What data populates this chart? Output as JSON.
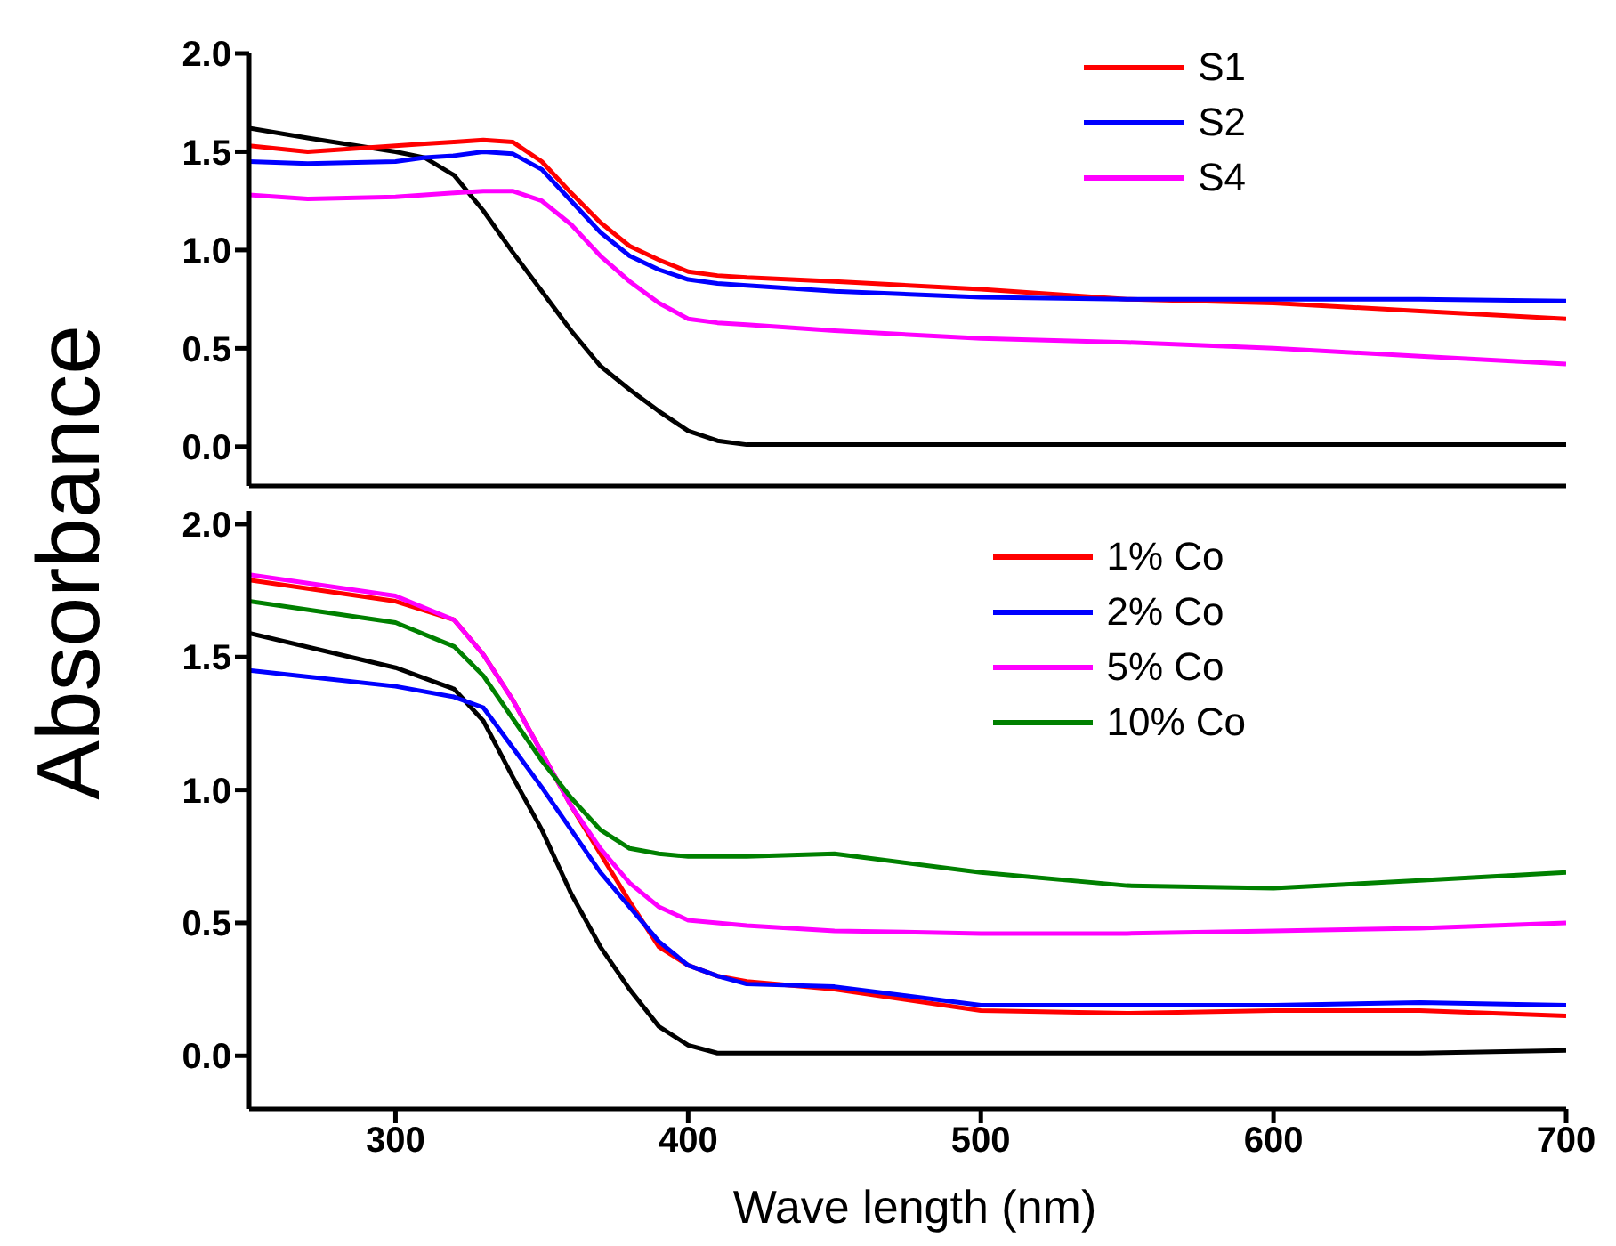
{
  "chart_data": [
    {
      "type": "line",
      "x": [
        250,
        270,
        300,
        310,
        320,
        330,
        340,
        350,
        360,
        370,
        380,
        390,
        400,
        410,
        420,
        450,
        500,
        550,
        600,
        650,
        700
      ],
      "series": [
        {
          "color": "#000000",
          "values": [
            1.62,
            1.57,
            1.5,
            1.47,
            1.38,
            1.2,
            0.99,
            0.79,
            0.59,
            0.41,
            0.29,
            0.18,
            0.08,
            0.03,
            0.01,
            0.01,
            0.01,
            0.01,
            0.01,
            0.01,
            0.01
          ]
        },
        {
          "name": "S1",
          "color": "#ff0000",
          "values": [
            1.53,
            1.5,
            1.53,
            1.54,
            1.55,
            1.56,
            1.55,
            1.45,
            1.29,
            1.14,
            1.02,
            0.95,
            0.89,
            0.87,
            0.86,
            0.84,
            0.8,
            0.75,
            0.73,
            0.69,
            0.65
          ]
        },
        {
          "name": "S2",
          "color": "#0000ff",
          "values": [
            1.45,
            1.44,
            1.45,
            1.47,
            1.48,
            1.5,
            1.49,
            1.41,
            1.25,
            1.09,
            0.97,
            0.9,
            0.85,
            0.83,
            0.82,
            0.79,
            0.76,
            0.75,
            0.75,
            0.75,
            0.74
          ]
        },
        {
          "name": "S4",
          "color": "#ff00ff",
          "values": [
            1.28,
            1.26,
            1.27,
            1.28,
            1.29,
            1.3,
            1.3,
            1.25,
            1.13,
            0.97,
            0.84,
            0.73,
            0.65,
            0.63,
            0.62,
            0.59,
            0.55,
            0.53,
            0.5,
            0.46,
            0.42
          ]
        }
      ],
      "xlim": [
        250,
        700
      ],
      "xticks": [
        300,
        400,
        500,
        600,
        700
      ],
      "ylim": [
        -0.2,
        2.0
      ],
      "yticks": [
        {
          "value": 0,
          "label": "0.0"
        },
        {
          "value": 0.5,
          "label": "0.5"
        },
        {
          "value": 1,
          "label": "1.0"
        },
        {
          "value": 1.5,
          "label": "1.5"
        },
        {
          "value": 2,
          "label": "2.0"
        }
      ],
      "tick_labels": "y",
      "grid": false,
      "legend": "top right",
      "marker": "none",
      "line_style": "solid"
    },
    {
      "type": "line",
      "x": [
        250,
        300,
        320,
        330,
        340,
        350,
        360,
        370,
        380,
        390,
        400,
        410,
        420,
        450,
        500,
        550,
        600,
        650,
        700
      ],
      "series": [
        {
          "color": "#000000",
          "values": [
            1.59,
            1.46,
            1.38,
            1.26,
            1.05,
            0.85,
            0.61,
            0.41,
            0.25,
            0.11,
            0.04,
            0.01,
            0.01,
            0.01,
            0.01,
            0.01,
            0.01,
            0.01,
            0.02
          ]
        },
        {
          "name": "1% Co",
          "color": "#ff0000",
          "values": [
            1.79,
            1.71,
            1.64,
            1.51,
            1.34,
            1.14,
            0.94,
            0.76,
            0.58,
            0.41,
            0.34,
            0.3,
            0.28,
            0.25,
            0.17,
            0.16,
            0.17,
            0.17,
            0.15
          ]
        },
        {
          "name": "2% Co",
          "color": "#0000ff",
          "values": [
            1.45,
            1.39,
            1.35,
            1.31,
            1.16,
            1.01,
            0.85,
            0.69,
            0.56,
            0.43,
            0.34,
            0.3,
            0.27,
            0.26,
            0.19,
            0.19,
            0.19,
            0.2,
            0.19
          ]
        },
        {
          "name": "5% Co",
          "color": "#ff00ff",
          "values": [
            1.81,
            1.73,
            1.64,
            1.51,
            1.34,
            1.14,
            0.94,
            0.78,
            0.65,
            0.56,
            0.51,
            0.5,
            0.49,
            0.47,
            0.46,
            0.46,
            0.47,
            0.48,
            0.5
          ]
        },
        {
          "name": "10% Co",
          "color": "#008000",
          "values": [
            1.71,
            1.63,
            1.54,
            1.43,
            1.27,
            1.11,
            0.97,
            0.85,
            0.78,
            0.76,
            0.75,
            0.75,
            0.75,
            0.76,
            0.69,
            0.64,
            0.63,
            0.66,
            0.69
          ]
        }
      ],
      "xlim": [
        250,
        700
      ],
      "xticks": [
        300,
        400,
        500,
        600,
        700
      ],
      "ylim": [
        -0.2,
        2.05
      ],
      "yticks": [
        {
          "value": 0,
          "label": "0.0"
        },
        {
          "value": 0.5,
          "label": "0.5"
        },
        {
          "value": 1,
          "label": "1.0"
        },
        {
          "value": 1.5,
          "label": "1.5"
        },
        {
          "value": 2,
          "label": "2.0"
        }
      ],
      "xlabel": "Wave length (nm)",
      "ylabel": "Absorbance",
      "grid": false,
      "legend": "top right",
      "marker": "none",
      "line_style": "solid"
    }
  ]
}
